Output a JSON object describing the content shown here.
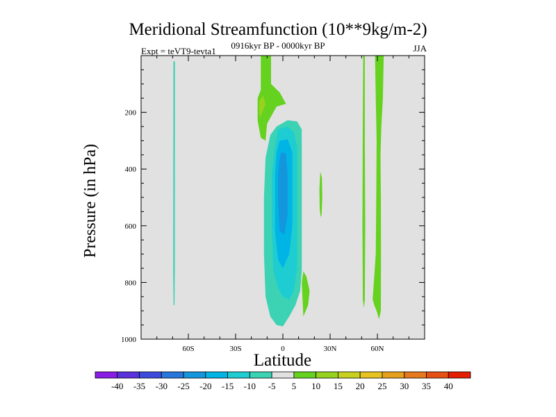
{
  "chart_data": {
    "type": "contour",
    "title": "Meridional Streamfunction (10**9kg/m-2)",
    "subtitle": "0916kyr BP - 0000kyr BP",
    "left_label": "Expt = teVT9-tevta1",
    "right_label": "JJA",
    "xlabel": "Latitude",
    "ylabel": "Pressure (in hPa)",
    "xlim": [
      -90,
      90
    ],
    "ylim": [
      1000,
      0
    ],
    "x_ticks": [
      {
        "value": -60,
        "label": "60S"
      },
      {
        "value": -30,
        "label": "30S"
      },
      {
        "value": 0,
        "label": "0"
      },
      {
        "value": 30,
        "label": "30N"
      },
      {
        "value": 60,
        "label": "60N"
      }
    ],
    "y_ticks": [
      {
        "value": 200,
        "label": "200"
      },
      {
        "value": 400,
        "label": "400"
      },
      {
        "value": 600,
        "label": "600"
      },
      {
        "value": 800,
        "label": "800"
      },
      {
        "value": 1000,
        "label": "1000"
      }
    ],
    "background_color": "#e1e1e1",
    "colorbar": {
      "levels": [
        "-40",
        "-35",
        "-30",
        "-25",
        "-20",
        "-15",
        "-10",
        "-5",
        "5",
        "10",
        "15",
        "20",
        "25",
        "30",
        "35",
        "40"
      ],
      "colors": [
        "#8a1ee6",
        "#5a32dc",
        "#3c4bdc",
        "#2876dc",
        "#1496dc",
        "#00b4e6",
        "#1ecdd2",
        "#3cd2b4",
        "#e1e1e1",
        "#64d21e",
        "#96d21e",
        "#c8d21e",
        "#e6c31e",
        "#e6a01e",
        "#e6781e",
        "#e65014",
        "#e61e00"
      ]
    },
    "contours": [
      {
        "level": "-5 to -10",
        "color": "#3cd2b4",
        "points": [
          [
            -69.5,
            20
          ],
          [
            -68.5,
            20
          ],
          [
            -68.6,
            760
          ],
          [
            -68.8,
            880
          ],
          [
            -69.4,
            880
          ],
          [
            -69.6,
            760
          ]
        ]
      },
      {
        "level": "5 to 10",
        "color": "#64d21e",
        "points": [
          [
            -14,
            0
          ],
          [
            -7.5,
            0
          ],
          [
            -7.5,
            100
          ],
          [
            -2,
            130
          ],
          [
            2,
            170
          ],
          [
            -4,
            180
          ],
          [
            -10,
            240
          ],
          [
            -11,
            300
          ],
          [
            -14,
            290
          ],
          [
            -16,
            230
          ],
          [
            -16,
            150
          ],
          [
            -14,
            120
          ]
        ]
      },
      {
        "level": "10 to 15",
        "color": "#96d21e",
        "points": [
          [
            -15,
            200
          ],
          [
            -15,
            160
          ],
          [
            -12.5,
            140
          ],
          [
            -11,
            170
          ],
          [
            -13,
            200
          ],
          [
            -14.5,
            220
          ]
        ]
      },
      {
        "level": "-5 to -10",
        "color": "#3cd2b4",
        "points": [
          [
            -4,
            250
          ],
          [
            3,
            228
          ],
          [
            9,
            232
          ],
          [
            12,
            260
          ],
          [
            12,
            560
          ],
          [
            12,
            760
          ],
          [
            11,
            830
          ],
          [
            8,
            880
          ],
          [
            4,
            920
          ],
          [
            0,
            955
          ],
          [
            -4,
            950
          ],
          [
            -8,
            920
          ],
          [
            -11,
            850
          ],
          [
            -12,
            700
          ],
          [
            -12,
            500
          ],
          [
            -11,
            360
          ],
          [
            -8,
            280
          ]
        ]
      },
      {
        "level": "5 to 10",
        "color": "#64d21e",
        "points": [
          [
            12,
            800
          ],
          [
            13,
            760
          ],
          [
            15,
            780
          ],
          [
            17,
            830
          ],
          [
            16,
            880
          ],
          [
            13,
            920
          ]
        ]
      },
      {
        "level": "-10 to -15",
        "color": "#1ecdd2",
        "points": [
          [
            -3,
            260
          ],
          [
            3,
            250
          ],
          [
            7,
            270
          ],
          [
            9,
            320
          ],
          [
            9,
            600
          ],
          [
            9,
            750
          ],
          [
            7,
            830
          ],
          [
            4,
            860
          ],
          [
            0,
            850
          ],
          [
            -3,
            820
          ],
          [
            -6,
            760
          ],
          [
            -7,
            600
          ],
          [
            -7,
            420
          ],
          [
            -5,
            320
          ]
        ]
      },
      {
        "level": "-15 to -20",
        "color": "#00b4e6",
        "points": [
          [
            -2,
            300
          ],
          [
            3,
            295
          ],
          [
            6,
            340
          ],
          [
            6,
            600
          ],
          [
            4,
            700
          ],
          [
            0,
            750
          ],
          [
            -3,
            720
          ],
          [
            -5,
            620
          ],
          [
            -5,
            420
          ],
          [
            -4,
            340
          ]
        ]
      },
      {
        "level": "-20 to -25",
        "color": "#1496dc",
        "points": [
          [
            -1,
            340
          ],
          [
            2,
            345
          ],
          [
            3,
            420
          ],
          [
            3,
            560
          ],
          [
            1,
            630
          ],
          [
            -2,
            620
          ],
          [
            -3,
            520
          ],
          [
            -3,
            420
          ],
          [
            -2,
            360
          ]
        ]
      },
      {
        "level": "5 to 10",
        "color": "#64d21e",
        "points": [
          [
            23.8,
            410
          ],
          [
            24.8,
            430
          ],
          [
            25,
            500
          ],
          [
            24.6,
            560
          ],
          [
            24,
            570
          ],
          [
            23.4,
            540
          ],
          [
            23.2,
            470
          ]
        ]
      },
      {
        "level": "5 to 10",
        "color": "#64d21e",
        "points": [
          [
            51,
            0
          ],
          [
            52,
            0
          ],
          [
            52,
            300
          ],
          [
            52.3,
            600
          ],
          [
            52,
            860
          ],
          [
            51.5,
            890
          ],
          [
            50.8,
            860
          ],
          [
            50.5,
            600
          ],
          [
            50.7,
            300
          ]
        ]
      },
      {
        "level": "5 to 10",
        "color": "#64d21e",
        "points": [
          [
            58.5,
            0
          ],
          [
            64,
            0
          ],
          [
            63.5,
            150
          ],
          [
            62.5,
            250
          ],
          [
            62,
            350
          ],
          [
            62.2,
            500
          ],
          [
            62.3,
            700
          ],
          [
            62.2,
            900
          ],
          [
            61,
            930
          ],
          [
            59.5,
            900
          ],
          [
            58,
            880
          ],
          [
            57,
            860
          ],
          [
            59,
            700
          ],
          [
            59.3,
            500
          ],
          [
            59.5,
            300
          ],
          [
            59,
            150
          ]
        ]
      }
    ]
  }
}
